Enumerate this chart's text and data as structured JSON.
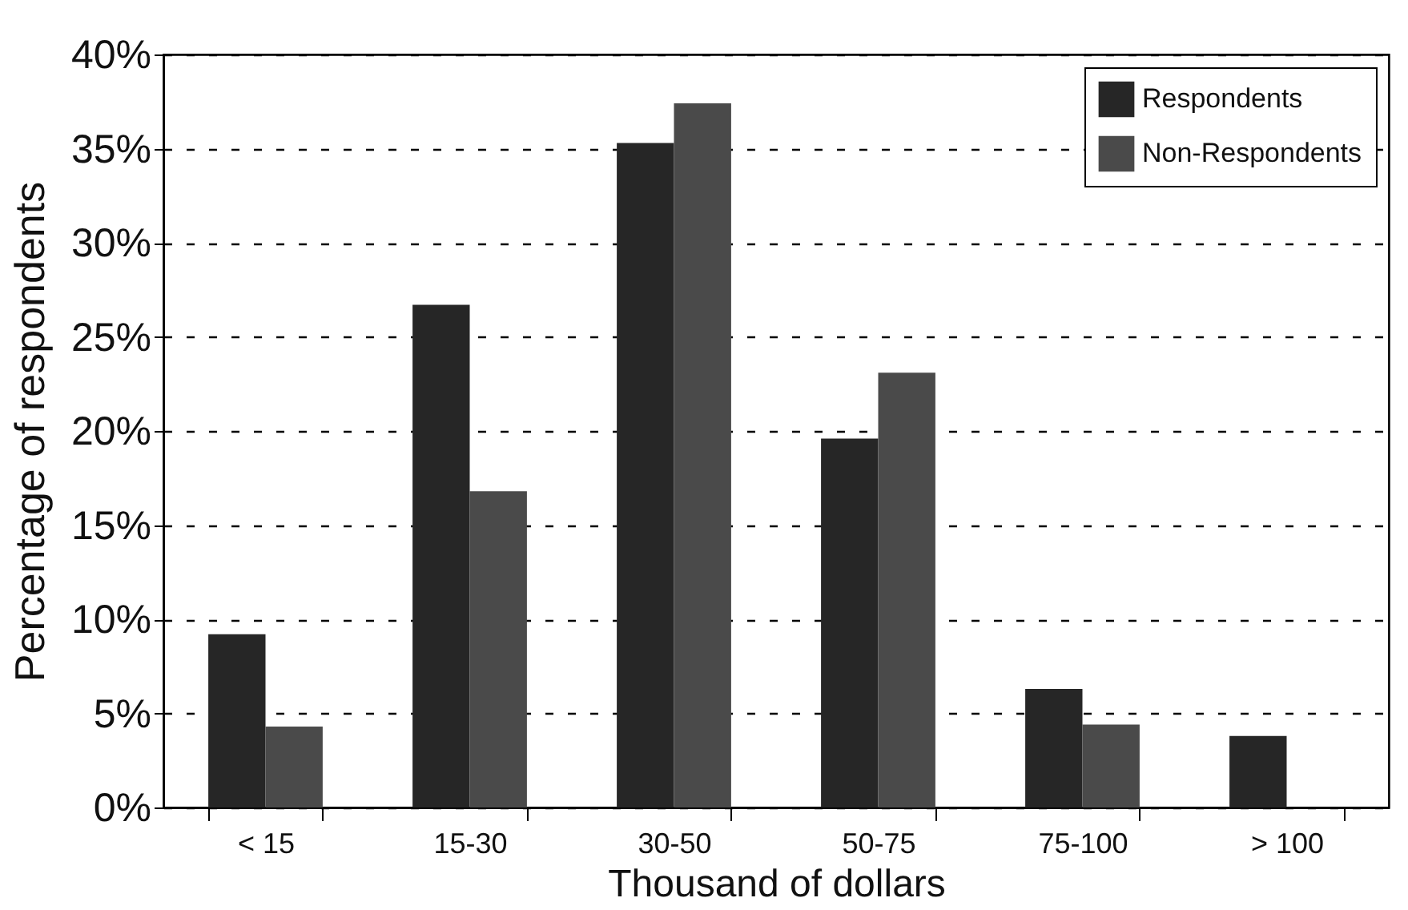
{
  "chart_data": {
    "type": "bar",
    "xlabel": "Thousand of dollars",
    "ylabel": "Percentage of respondents",
    "categories": [
      "< 15",
      "15-30",
      "30-50",
      "50-75",
      "75-100",
      "> 100"
    ],
    "series": [
      {
        "name": "Respondents",
        "color": "#262626",
        "values": [
          9.2,
          26.7,
          35.3,
          19.6,
          6.3,
          3.8
        ]
      },
      {
        "name": "Non-Respondents",
        "color": "#4a4a4a",
        "values": [
          4.3,
          16.8,
          37.4,
          23.1,
          4.4,
          0
        ]
      }
    ],
    "ylim": [
      0,
      40
    ],
    "yticks": [
      {
        "value": 0,
        "label": "0%"
      },
      {
        "value": 5,
        "label": "5%"
      },
      {
        "value": 10,
        "label": "10%"
      },
      {
        "value": 15,
        "label": "15%"
      },
      {
        "value": 20,
        "label": "20%"
      },
      {
        "value": 25,
        "label": "25%"
      },
      {
        "value": 30,
        "label": "30%"
      },
      {
        "value": 35,
        "label": "35%"
      },
      {
        "value": 40,
        "label": "40%"
      }
    ],
    "grid": "y",
    "legend": "top right"
  }
}
